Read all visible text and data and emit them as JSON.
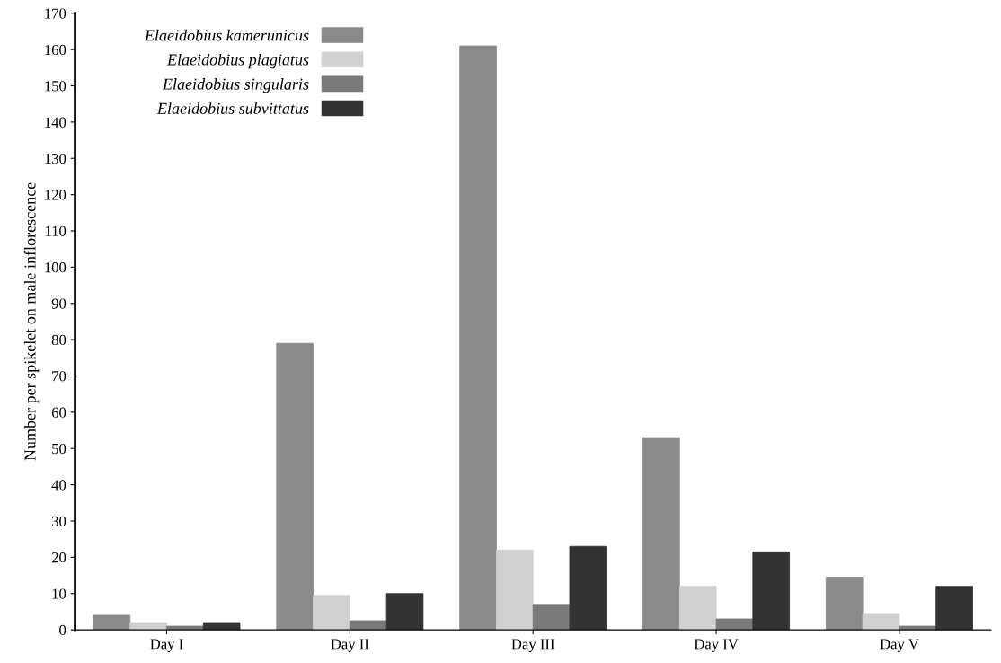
{
  "chart_data": {
    "type": "bar",
    "ylabel": "Number per spikelet on male inflorescence",
    "categories": [
      "Day I",
      "Day II",
      "Day III",
      "Day IV",
      "Day V"
    ],
    "series": [
      {
        "name": "Elaeidobius kamerunicus",
        "color": "#8a8a8a",
        "values": [
          4,
          79,
          161,
          53,
          14.5
        ]
      },
      {
        "name": "Elaeidobius plagiatus",
        "color": "#d0d0d0",
        "values": [
          2,
          9.5,
          22,
          12,
          4.5
        ]
      },
      {
        "name": "Elaeidobius singularis",
        "color": "#7a7a7a",
        "values": [
          1,
          2.5,
          7,
          3,
          1
        ]
      },
      {
        "name": "Elaeidobius subvittatus",
        "color": "#333333",
        "values": [
          2,
          10,
          23,
          21.5,
          12
        ]
      }
    ],
    "ylim": [
      0,
      170
    ],
    "yticks": [
      0,
      10,
      20,
      30,
      40,
      50,
      60,
      70,
      80,
      90,
      100,
      110,
      120,
      130,
      140,
      150,
      160,
      170
    ],
    "grid": false,
    "legend": "top left"
  }
}
